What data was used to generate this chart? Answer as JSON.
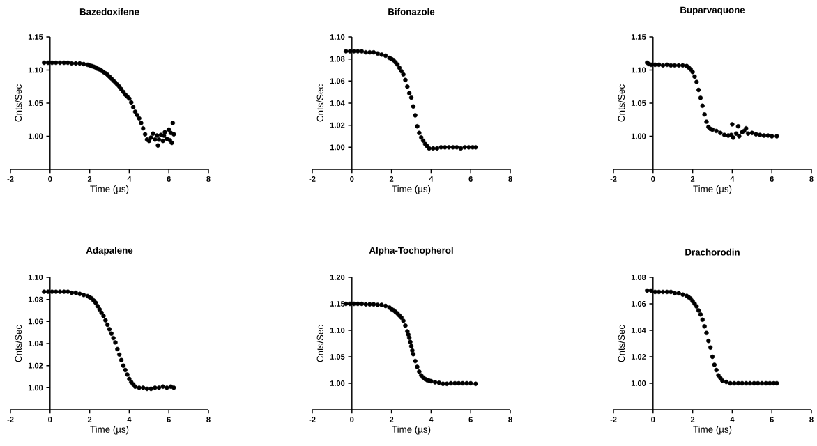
{
  "chart_data": [
    {
      "type": "scatter",
      "title": "Bazedoxifene",
      "xlabel": "Time (µs)",
      "ylabel": "Cnts/Sec",
      "marker": "circle",
      "xlim": [
        -2,
        8
      ],
      "xticks": [
        -2,
        0,
        2,
        4,
        6,
        8
      ],
      "ylim": [
        0.95,
        1.15
      ],
      "yticks": [
        {
          "value": 1.0,
          "label": "1.00"
        },
        {
          "value": 1.05,
          "label": "1.05"
        },
        {
          "value": 1.1,
          "label": "1.10"
        },
        {
          "value": 1.15,
          "label": "1.15"
        }
      ],
      "x": [
        -0.3,
        -0.1,
        0.1,
        0.3,
        0.5,
        0.7,
        0.9,
        1.1,
        1.3,
        1.5,
        1.7,
        1.9,
        2.0,
        2.1,
        2.2,
        2.3,
        2.4,
        2.5,
        2.6,
        2.7,
        2.8,
        2.9,
        3.0,
        3.1,
        3.2,
        3.3,
        3.4,
        3.5,
        3.6,
        3.7,
        3.8,
        3.9,
        4.0,
        4.1,
        4.2,
        4.3,
        4.4,
        4.5,
        4.6,
        4.7,
        4.8,
        4.9,
        5.0,
        5.1,
        5.2,
        5.3,
        5.4,
        5.45,
        5.5,
        5.6,
        5.7,
        5.75,
        5.8,
        5.9,
        6.0,
        6.05,
        6.1,
        6.15,
        6.2,
        6.25
      ],
      "series": [
        {
          "color": "#000000",
          "values": [
            1.111,
            1.111,
            1.111,
            1.111,
            1.111,
            1.111,
            1.111,
            1.11,
            1.11,
            1.11,
            1.109,
            1.108,
            1.107,
            1.106,
            1.105,
            1.104,
            1.102,
            1.101,
            1.099,
            1.097,
            1.095,
            1.093,
            1.09,
            1.087,
            1.084,
            1.081,
            1.078,
            1.075,
            1.071,
            1.067,
            1.063,
            1.06,
            1.057,
            1.051,
            1.044,
            1.037,
            1.032,
            1.027,
            1.02,
            1.012,
            1.003,
            0.995,
            0.993,
            0.998,
            1.004,
            0.995,
            1.001,
            0.986,
            0.995,
            1.002,
            0.993,
            1.001,
            1.006,
            0.996,
            1.01,
            0.994,
            1.005,
            0.99,
            1.02,
            1.003
          ]
        }
      ]
    },
    {
      "type": "scatter",
      "title": "Bifonazole",
      "xlabel": "Time (µs)",
      "ylabel": "Cnts/Sec",
      "marker": "circle",
      "xlim": [
        -2,
        8
      ],
      "xticks": [
        -2,
        0,
        2,
        4,
        6,
        8
      ],
      "ylim": [
        0.98,
        1.1
      ],
      "yticks": [
        {
          "value": 1.0,
          "label": "1.00"
        },
        {
          "value": 1.02,
          "label": "1.02"
        },
        {
          "value": 1.04,
          "label": "1.04"
        },
        {
          "value": 1.06,
          "label": "1.06"
        },
        {
          "value": 1.08,
          "label": "1.08"
        },
        {
          "value": 1.1,
          "label": "1.10"
        }
      ],
      "x": [
        -0.3,
        -0.1,
        0.1,
        0.3,
        0.5,
        0.7,
        0.9,
        1.1,
        1.3,
        1.5,
        1.7,
        1.9,
        2.0,
        2.1,
        2.2,
        2.3,
        2.4,
        2.5,
        2.6,
        2.7,
        2.8,
        2.9,
        3.0,
        3.1,
        3.2,
        3.3,
        3.4,
        3.5,
        3.6,
        3.7,
        3.8,
        3.9,
        4.1,
        4.3,
        4.5,
        4.7,
        4.9,
        5.1,
        5.3,
        5.5,
        5.7,
        5.9,
        6.1,
        6.25
      ],
      "series": [
        {
          "color": "#000000",
          "values": [
            1.087,
            1.087,
            1.087,
            1.087,
            1.087,
            1.086,
            1.086,
            1.086,
            1.085,
            1.084,
            1.083,
            1.081,
            1.08,
            1.079,
            1.077,
            1.075,
            1.072,
            1.069,
            1.066,
            1.061,
            1.055,
            1.049,
            1.045,
            1.037,
            1.029,
            1.019,
            1.013,
            1.009,
            1.006,
            1.003,
            1.001,
            0.999,
            0.999,
            0.999,
            1.0,
            1.0,
            1.0,
            1.0,
            1.0,
            0.999,
            1.0,
            1.0,
            1.0,
            1.0
          ]
        }
      ]
    },
    {
      "type": "scatter",
      "title": "Buparvaquone",
      "xlabel": "Time (µs)",
      "ylabel": "Cnts/Sec",
      "marker": "circle",
      "xlim": [
        -2,
        8
      ],
      "xticks": [
        -2,
        0,
        2,
        4,
        6,
        8
      ],
      "ylim": [
        0.95,
        1.15
      ],
      "yticks": [
        {
          "value": 1.0,
          "label": "1.00"
        },
        {
          "value": 1.05,
          "label": "1.05"
        },
        {
          "value": 1.1,
          "label": "1.10"
        },
        {
          "value": 1.15,
          "label": "1.15"
        }
      ],
      "x": [
        -0.3,
        -0.2,
        -0.1,
        0.1,
        0.3,
        0.5,
        0.7,
        0.9,
        1.1,
        1.3,
        1.5,
        1.7,
        1.8,
        1.9,
        2.0,
        2.1,
        2.2,
        2.3,
        2.4,
        2.5,
        2.6,
        2.7,
        2.8,
        2.9,
        3.0,
        3.2,
        3.4,
        3.6,
        3.8,
        3.95,
        4.0,
        4.05,
        4.2,
        4.3,
        4.35,
        4.5,
        4.6,
        4.7,
        4.8,
        5.0,
        5.2,
        5.4,
        5.6,
        5.8,
        6.0,
        6.25
      ],
      "series": [
        {
          "color": "#000000",
          "values": [
            1.111,
            1.109,
            1.108,
            1.108,
            1.108,
            1.107,
            1.108,
            1.107,
            1.107,
            1.107,
            1.107,
            1.106,
            1.104,
            1.101,
            1.097,
            1.09,
            1.082,
            1.07,
            1.058,
            1.046,
            1.033,
            1.022,
            1.014,
            1.011,
            1.01,
            1.008,
            1.005,
            1.002,
            1.001,
            1.002,
            1.018,
            0.998,
            1.004,
            1.015,
            1.0,
            1.006,
            1.008,
            1.012,
            1.004,
            1.005,
            1.003,
            1.002,
            1.001,
            1.001,
            1.0,
            1.0
          ]
        }
      ]
    },
    {
      "type": "scatter",
      "title": "Adapalene",
      "xlabel": "Time (µs)",
      "ylabel": "Cnts/Sec",
      "marker": "circle",
      "xlim": [
        -2,
        8
      ],
      "xticks": [
        -2,
        0,
        2,
        4,
        6,
        8
      ],
      "ylim": [
        0.98,
        1.1
      ],
      "yticks": [
        {
          "value": 1.0,
          "label": "1.00"
        },
        {
          "value": 1.02,
          "label": "1.02"
        },
        {
          "value": 1.04,
          "label": "1.04"
        },
        {
          "value": 1.06,
          "label": "1.06"
        },
        {
          "value": 1.08,
          "label": "1.08"
        },
        {
          "value": 1.1,
          "label": "1.10"
        }
      ],
      "x": [
        -0.3,
        -0.1,
        0.1,
        0.3,
        0.5,
        0.7,
        0.9,
        1.1,
        1.3,
        1.5,
        1.7,
        1.9,
        2.0,
        2.1,
        2.2,
        2.3,
        2.4,
        2.5,
        2.6,
        2.7,
        2.8,
        2.9,
        3.0,
        3.1,
        3.2,
        3.3,
        3.4,
        3.5,
        3.6,
        3.7,
        3.8,
        3.9,
        4.0,
        4.1,
        4.2,
        4.3,
        4.5,
        4.7,
        4.9,
        5.1,
        5.3,
        5.5,
        5.7,
        5.9,
        6.1,
        6.25
      ],
      "series": [
        {
          "color": "#000000",
          "values": [
            1.087,
            1.087,
            1.087,
            1.087,
            1.087,
            1.087,
            1.087,
            1.086,
            1.086,
            1.085,
            1.084,
            1.083,
            1.082,
            1.081,
            1.079,
            1.077,
            1.074,
            1.071,
            1.068,
            1.065,
            1.061,
            1.057,
            1.053,
            1.049,
            1.045,
            1.041,
            1.035,
            1.03,
            1.025,
            1.02,
            1.016,
            1.012,
            1.008,
            1.005,
            1.003,
            1.001,
            1.0,
            1.0,
            0.999,
            0.999,
            1.0,
            1.0,
            1.001,
            1.0,
            1.001,
            1.0
          ]
        }
      ]
    },
    {
      "type": "scatter",
      "title": "Alpha-Tochopherol",
      "xlabel": "Time (µs)",
      "ylabel": "Cnts/Sec",
      "marker": "circle",
      "xlim": [
        -2,
        8
      ],
      "xticks": [
        -2,
        0,
        2,
        4,
        6,
        8
      ],
      "ylim": [
        0.95,
        1.2
      ],
      "yticks": [
        {
          "value": 1.0,
          "label": "1.00"
        },
        {
          "value": 1.05,
          "label": "1.05"
        },
        {
          "value": 1.1,
          "label": "1.10"
        },
        {
          "value": 1.15,
          "label": "1.15"
        },
        {
          "value": 1.2,
          "label": "1.20"
        }
      ],
      "x": [
        -0.3,
        -0.1,
        0.1,
        0.3,
        0.5,
        0.7,
        0.9,
        1.1,
        1.3,
        1.5,
        1.7,
        1.9,
        2.0,
        2.1,
        2.2,
        2.3,
        2.4,
        2.5,
        2.6,
        2.7,
        2.8,
        2.85,
        2.9,
        2.95,
        3.0,
        3.05,
        3.1,
        3.2,
        3.3,
        3.4,
        3.5,
        3.6,
        3.7,
        3.8,
        3.9,
        4.0,
        4.2,
        4.4,
        4.6,
        4.8,
        5.0,
        5.2,
        5.4,
        5.6,
        5.8,
        6.0,
        6.25
      ],
      "series": [
        {
          "color": "#000000",
          "values": [
            1.15,
            1.15,
            1.15,
            1.15,
            1.15,
            1.149,
            1.149,
            1.149,
            1.148,
            1.148,
            1.146,
            1.143,
            1.14,
            1.138,
            1.135,
            1.132,
            1.128,
            1.124,
            1.118,
            1.109,
            1.098,
            1.092,
            1.086,
            1.078,
            1.07,
            1.062,
            1.055,
            1.042,
            1.031,
            1.022,
            1.015,
            1.011,
            1.008,
            1.006,
            1.005,
            1.004,
            1.002,
            1.001,
            0.999,
            0.999,
            1.0,
            1.0,
            1.0,
            1.0,
            1.0,
            1.0,
            0.999
          ]
        }
      ]
    },
    {
      "type": "scatter",
      "title": "Drachorodin",
      "xlabel": "Time (µs)",
      "ylabel": "Cnts/Sec",
      "marker": "circle",
      "xlim": [
        -2,
        8
      ],
      "xticks": [
        -2,
        0,
        2,
        4,
        6,
        8
      ],
      "ylim": [
        0.98,
        1.08
      ],
      "yticks": [
        {
          "value": 1.0,
          "label": "1.00"
        },
        {
          "value": 1.02,
          "label": "1.02"
        },
        {
          "value": 1.04,
          "label": "1.04"
        },
        {
          "value": 1.06,
          "label": "1.06"
        },
        {
          "value": 1.08,
          "label": "1.08"
        }
      ],
      "x": [
        -0.3,
        -0.1,
        0.1,
        0.3,
        0.5,
        0.7,
        0.9,
        1.1,
        1.3,
        1.5,
        1.7,
        1.8,
        1.9,
        2.0,
        2.1,
        2.2,
        2.3,
        2.4,
        2.5,
        2.6,
        2.7,
        2.8,
        2.9,
        3.0,
        3.1,
        3.2,
        3.3,
        3.4,
        3.5,
        3.7,
        3.9,
        4.1,
        4.3,
        4.5,
        4.7,
        4.9,
        5.1,
        5.3,
        5.5,
        5.7,
        5.9,
        6.1,
        6.25
      ],
      "series": [
        {
          "color": "#000000",
          "values": [
            1.07,
            1.07,
            1.069,
            1.069,
            1.069,
            1.069,
            1.069,
            1.068,
            1.068,
            1.067,
            1.066,
            1.065,
            1.064,
            1.062,
            1.06,
            1.058,
            1.055,
            1.052,
            1.048,
            1.043,
            1.038,
            1.032,
            1.027,
            1.02,
            1.014,
            1.01,
            1.006,
            1.004,
            1.002,
            1.001,
            1.0,
            1.0,
            1.0,
            1.0,
            1.0,
            1.0,
            1.0,
            1.0,
            1.0,
            1.0,
            1.0,
            1.0,
            1.0
          ]
        }
      ]
    }
  ]
}
